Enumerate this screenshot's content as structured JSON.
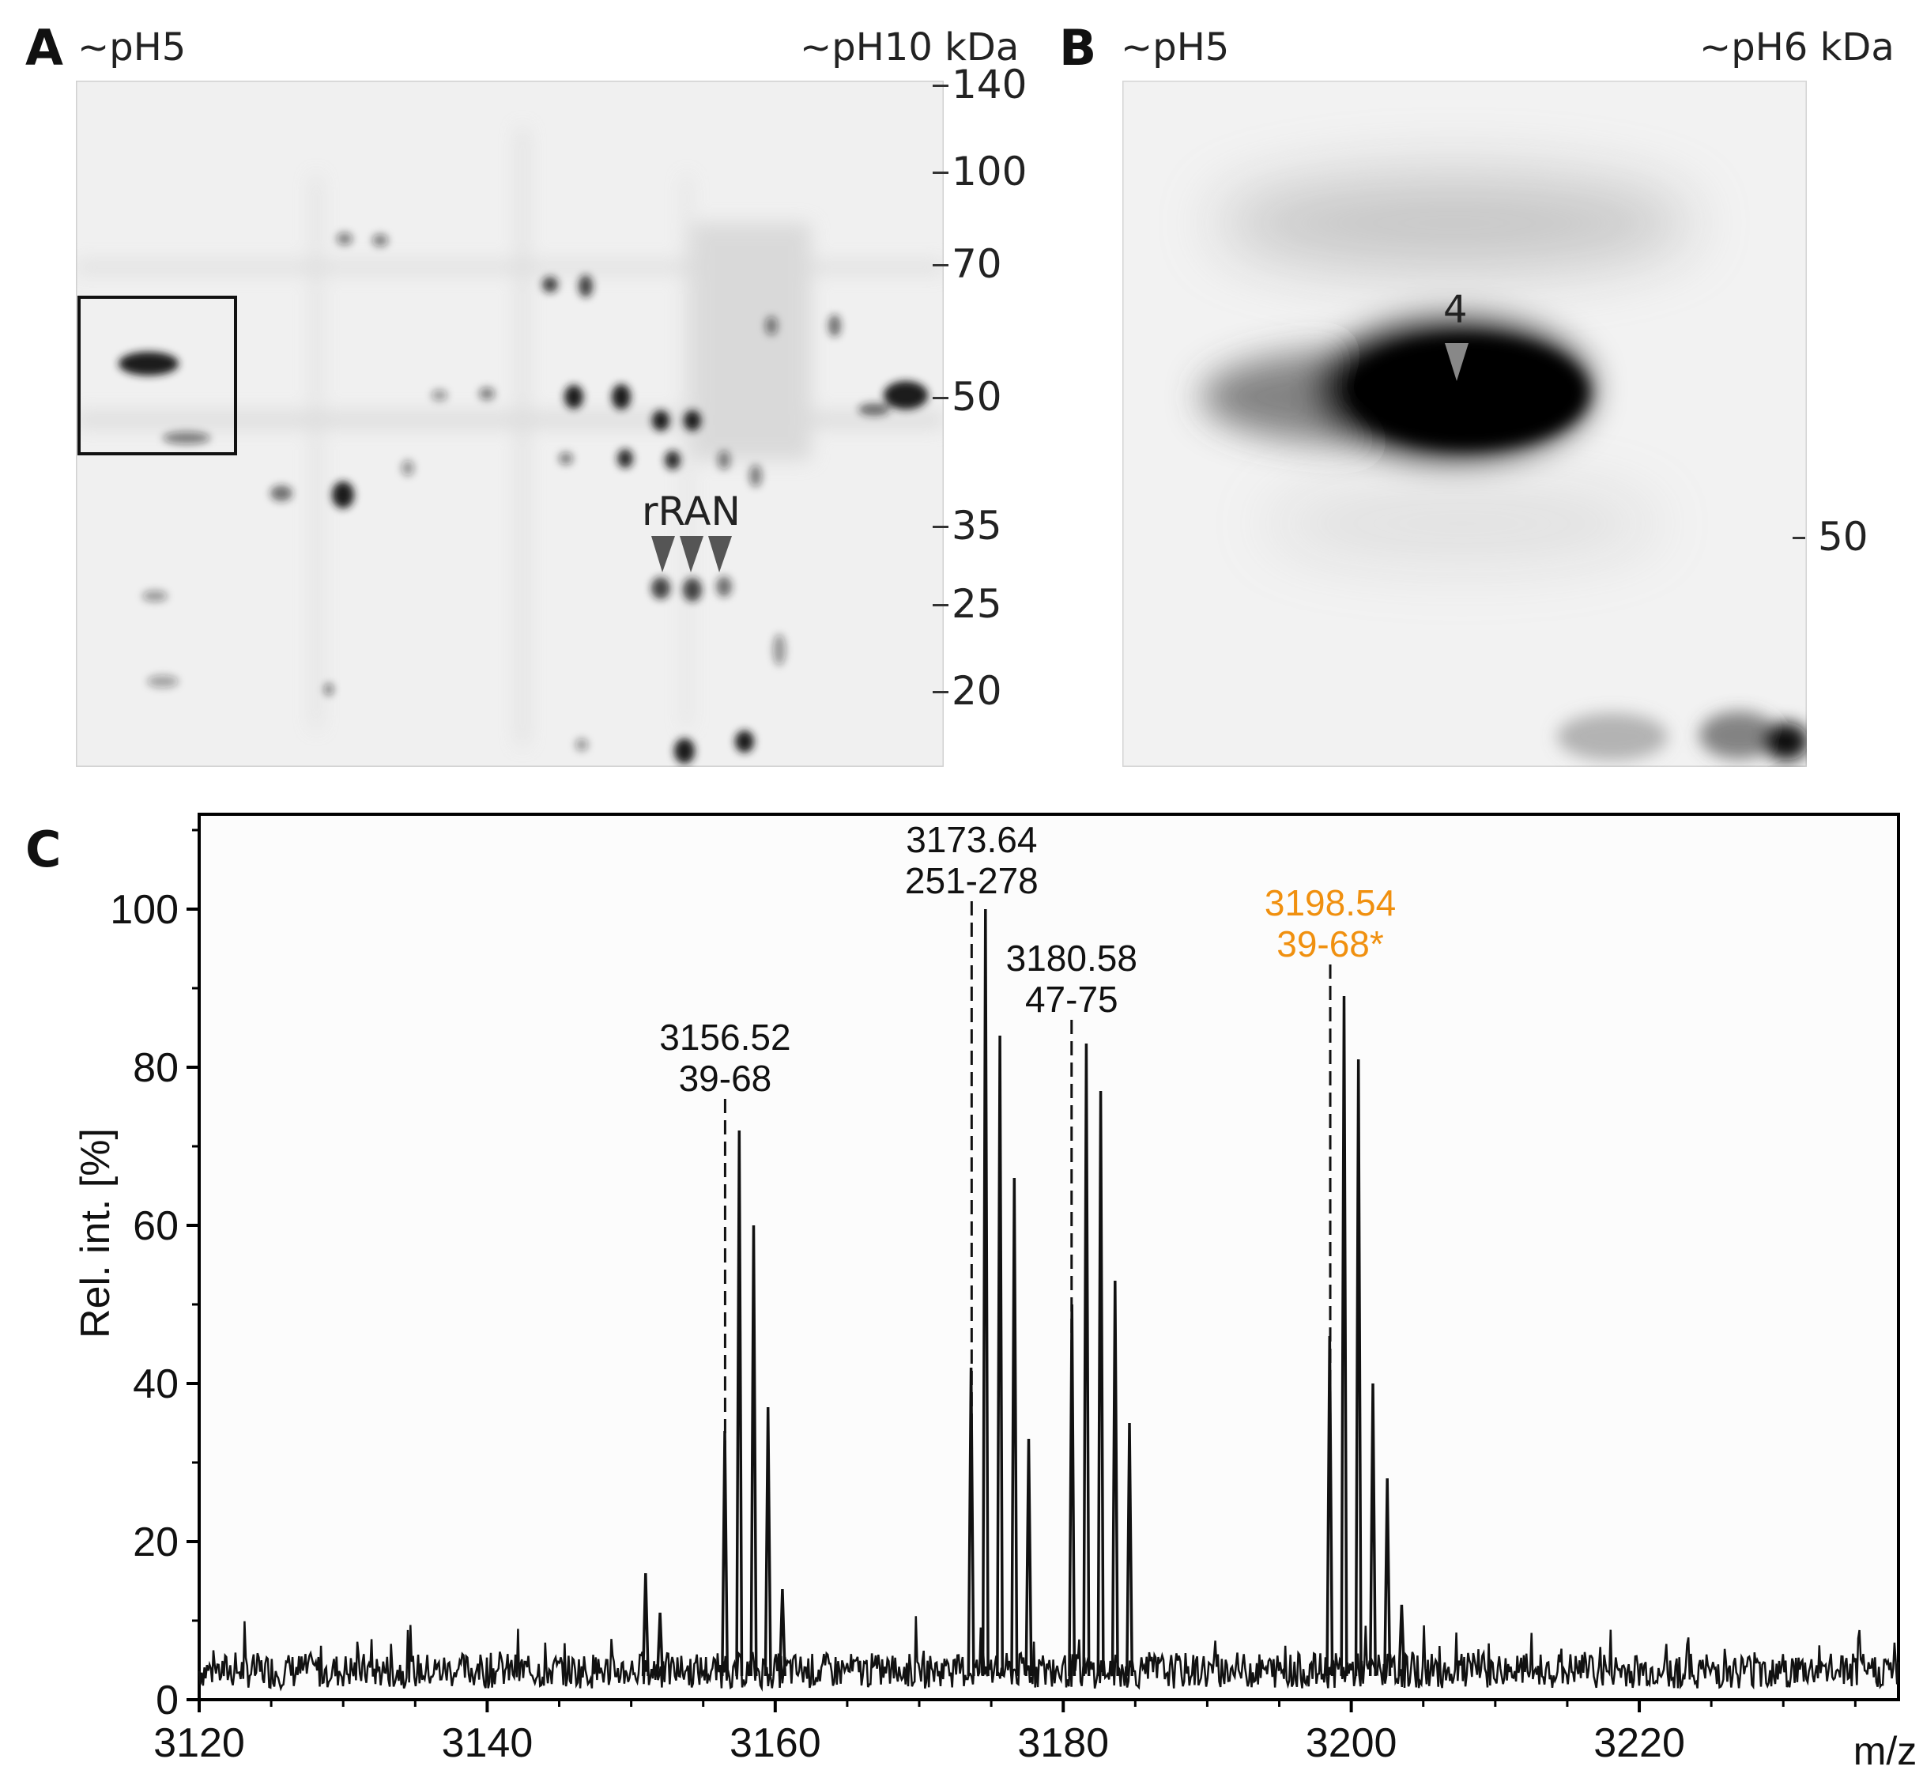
{
  "panel_a": {
    "letter": "A",
    "left_ph": "~pH5",
    "right_ph": "~pH10",
    "unit": "kDa",
    "markers": [
      "140",
      "100",
      "70",
      "50",
      "35",
      "25",
      "20"
    ],
    "annotation": "rRAN"
  },
  "panel_b": {
    "letter": "B",
    "left_ph": "~pH5",
    "right_ph": "~pH6",
    "unit": "kDa",
    "markers": [
      "50"
    ],
    "spot_label": "4"
  },
  "panel_c": {
    "letter": "C"
  },
  "chart_data": {
    "type": "line",
    "title": "",
    "xlabel": "m/z",
    "ylabel": "Rel. int. [%]",
    "xlim": [
      3120,
      3238
    ],
    "ylim": [
      0,
      112
    ],
    "xticks": [
      3120,
      3140,
      3160,
      3180,
      3200,
      3220
    ],
    "yticks": [
      0,
      20,
      40,
      60,
      80,
      100
    ],
    "noise_baseline": 3,
    "peaks": [
      {
        "x": 3151.0,
        "y": 16
      },
      {
        "x": 3152.0,
        "y": 11
      },
      {
        "x": 3156.5,
        "y": 34
      },
      {
        "x": 3157.5,
        "y": 72
      },
      {
        "x": 3158.5,
        "y": 60
      },
      {
        "x": 3159.5,
        "y": 37
      },
      {
        "x": 3160.5,
        "y": 14
      },
      {
        "x": 3173.6,
        "y": 42
      },
      {
        "x": 3174.6,
        "y": 100
      },
      {
        "x": 3175.6,
        "y": 84
      },
      {
        "x": 3176.6,
        "y": 66
      },
      {
        "x": 3177.6,
        "y": 33
      },
      {
        "x": 3180.6,
        "y": 50
      },
      {
        "x": 3181.6,
        "y": 83
      },
      {
        "x": 3182.6,
        "y": 77
      },
      {
        "x": 3183.6,
        "y": 53
      },
      {
        "x": 3184.6,
        "y": 35
      },
      {
        "x": 3198.5,
        "y": 46
      },
      {
        "x": 3199.5,
        "y": 89
      },
      {
        "x": 3200.5,
        "y": 81
      },
      {
        "x": 3201.5,
        "y": 40
      },
      {
        "x": 3202.5,
        "y": 28
      },
      {
        "x": 3203.5,
        "y": 12
      }
    ],
    "annotations": [
      {
        "mass": "3156.52",
        "range": "39-68",
        "x": 3156.52,
        "line_top": 76,
        "color": "#111111"
      },
      {
        "mass": "3173.64",
        "range": "251-278",
        "x": 3173.64,
        "line_top": 101,
        "color": "#111111"
      },
      {
        "mass": "3180.58",
        "range": "47-75",
        "x": 3180.58,
        "line_top": 86,
        "color": "#111111"
      },
      {
        "mass": "3198.54",
        "range": "39-68*",
        "x": 3198.54,
        "line_top": 93,
        "color": "#f0900f"
      }
    ]
  }
}
